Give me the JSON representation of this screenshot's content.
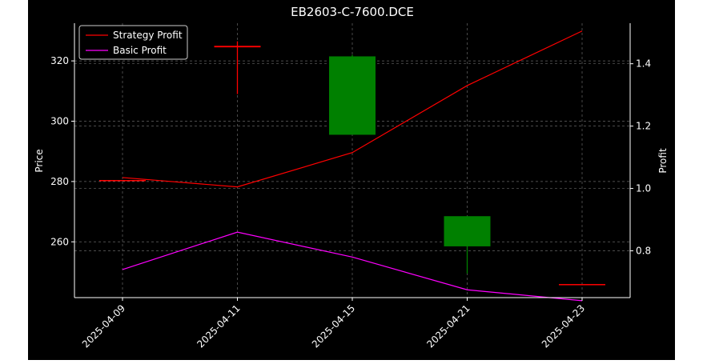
{
  "chart_data": {
    "type": "candlestick",
    "title": "EB2603-C-7600.DCE",
    "ylabel_left": "Price",
    "ylabel_right": "Profit",
    "categories": [
      "2025-04-09",
      "2025-04-11",
      "2025-04-15",
      "2025-04-21",
      "2025-04-23"
    ],
    "y_left_ticks": [
      260,
      280,
      300,
      320
    ],
    "y_left_range": [
      241.5,
      332.5
    ],
    "y_right_ticks": [
      "0.8",
      "1.0",
      "1.2",
      "1.4"
    ],
    "y_right_range": [
      0.65,
      1.53
    ],
    "grid": true,
    "legend_position": "top-left",
    "candles": [
      {
        "date": "2025-04-09",
        "open": 280.5,
        "high": 280.5,
        "low": 280.5,
        "close": 280.5,
        "direction": "down"
      },
      {
        "date": "2025-04-11",
        "open": 325.0,
        "high": 326.5,
        "low": 309.0,
        "close": 324.5,
        "direction": "down"
      },
      {
        "date": "2025-04-15",
        "open": 295.5,
        "high": 322.0,
        "low": 295.5,
        "close": 321.5,
        "direction": "up"
      },
      {
        "date": "2025-04-21",
        "open": 258.5,
        "high": 268.5,
        "low": 249.5,
        "close": 268.5,
        "direction": "up"
      },
      {
        "date": "2025-04-23",
        "open": 246.0,
        "high": 246.0,
        "low": 246.0,
        "close": 246.0,
        "direction": "down"
      }
    ],
    "series": [
      {
        "name": "Strategy Profit",
        "color": "#ff0000",
        "values": [
          1.035,
          1.005,
          1.115,
          1.33,
          1.505
        ]
      },
      {
        "name": "Basic Profit",
        "color": "#ff00ff",
        "values": [
          0.74,
          0.86,
          0.78,
          0.675,
          0.64
        ]
      }
    ],
    "colors": {
      "background": "#000000",
      "axes": "#ffffff",
      "grid": "#808080",
      "up": "#008000",
      "down": "#ff0000"
    }
  }
}
